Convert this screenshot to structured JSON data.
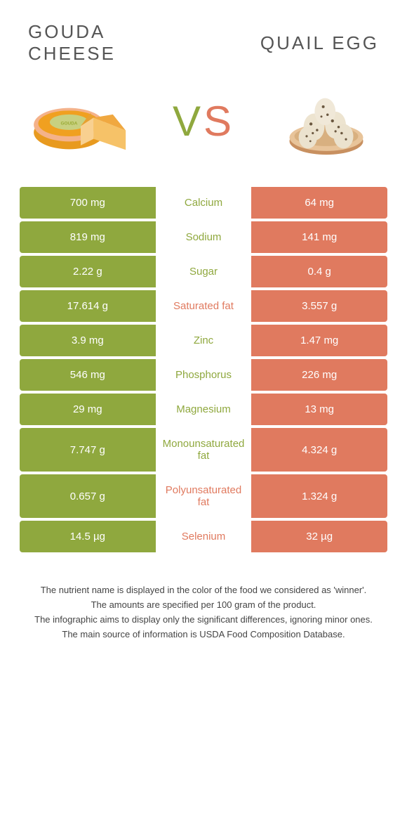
{
  "leftTitle": "GOUDA\nCHEESE",
  "rightTitle": "QUAIL EGG",
  "vsV": "V",
  "vsS": "S",
  "colors": {
    "left": "#8fa83e",
    "right": "#e07a5f",
    "leftText": "#8fa83e",
    "rightText": "#e07a5f"
  },
  "rows": [
    {
      "left": "700 mg",
      "label": "Calcium",
      "right": "64 mg",
      "winner": "left"
    },
    {
      "left": "819 mg",
      "label": "Sodium",
      "right": "141 mg",
      "winner": "left"
    },
    {
      "left": "2.22 g",
      "label": "Sugar",
      "right": "0.4 g",
      "winner": "left"
    },
    {
      "left": "17.614 g",
      "label": "Saturated fat",
      "right": "3.557 g",
      "winner": "right"
    },
    {
      "left": "3.9 mg",
      "label": "Zinc",
      "right": "1.47 mg",
      "winner": "left"
    },
    {
      "left": "546 mg",
      "label": "Phosphorus",
      "right": "226 mg",
      "winner": "left"
    },
    {
      "left": "29 mg",
      "label": "Magnesium",
      "right": "13 mg",
      "winner": "left"
    },
    {
      "left": "7.747 g",
      "label": "Monounsaturated fat",
      "right": "4.324 g",
      "winner": "left"
    },
    {
      "left": "0.657 g",
      "label": "Polyunsaturated fat",
      "right": "1.324 g",
      "winner": "right"
    },
    {
      "left": "14.5 µg",
      "label": "Selenium",
      "right": "32 µg",
      "winner": "right"
    }
  ],
  "footer": [
    "The nutrient name is displayed in the color of the food we considered as 'winner'.",
    "The amounts are specified per 100 gram of the product.",
    "The infographic aims to display only the significant differences, ignoring minor ones.",
    "The main source of information is USDA Food Composition Database."
  ]
}
